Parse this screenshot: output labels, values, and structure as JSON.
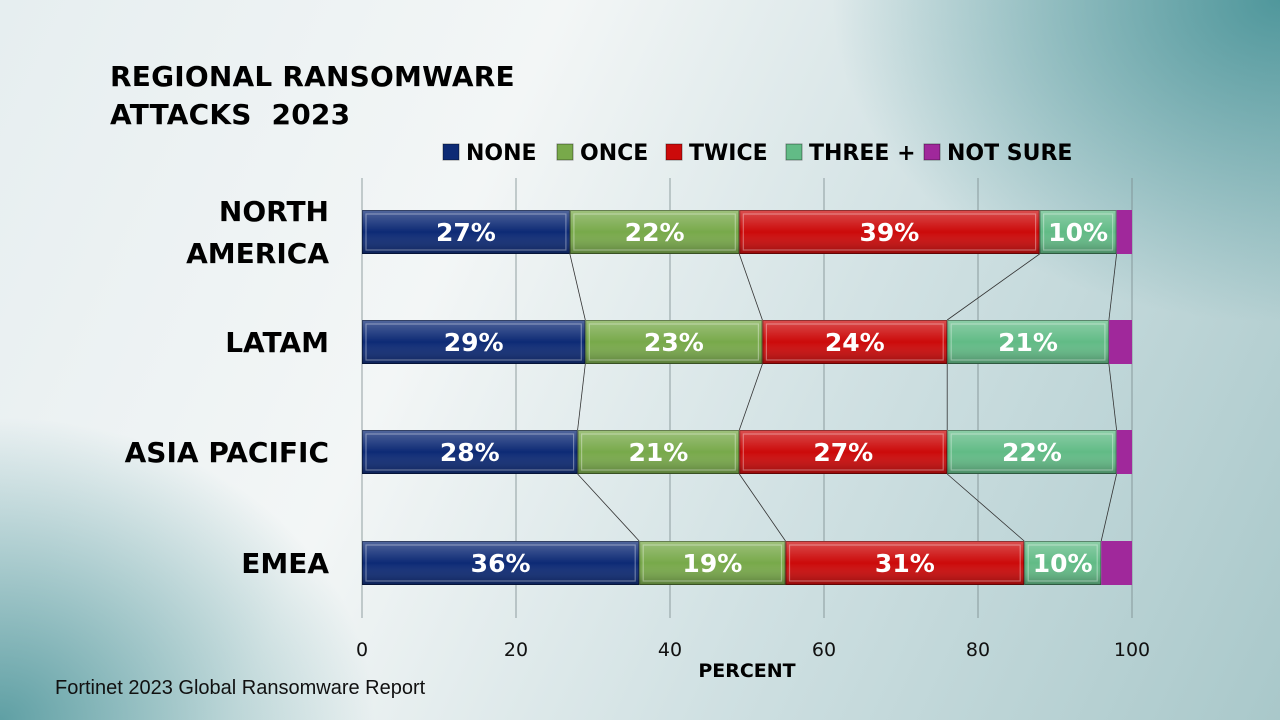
{
  "title": "REGIONAL RANSOMWARE\nATTACKS  2023",
  "source": "Fortinet 2023 Global Ransomware Report",
  "colors": {
    "none": "#0d2a75",
    "once": "#78a94a",
    "twice": "#cc0a0a",
    "three_plus": "#62bb86",
    "not_sure": "#a0289b"
  },
  "chart_data": {
    "type": "bar",
    "orientation": "horizontal",
    "stacked": true,
    "categories": [
      "NORTH AMERICA",
      "LATAM",
      "ASIA PACIFIC",
      "EMEA"
    ],
    "category_label_lines": [
      [
        "NORTH",
        "AMERICA"
      ],
      [
        "LATAM"
      ],
      [
        "ASIA PACIFIC"
      ],
      [
        "EMEA"
      ]
    ],
    "series": [
      {
        "name": "NONE",
        "key": "none",
        "values": [
          27,
          29,
          28,
          36
        ],
        "labels": [
          "27%",
          "29%",
          "28%",
          "36%"
        ]
      },
      {
        "name": "ONCE",
        "key": "once",
        "values": [
          22,
          23,
          21,
          19
        ],
        "labels": [
          "22%",
          "23%",
          "21%",
          "19%"
        ]
      },
      {
        "name": "TWICE",
        "key": "twice",
        "values": [
          39,
          24,
          27,
          31
        ],
        "labels": [
          "39%",
          "24%",
          "27%",
          "31%"
        ]
      },
      {
        "name": "THREE +",
        "key": "three_plus",
        "values": [
          10,
          21,
          22,
          10
        ],
        "labels": [
          "10%",
          "21%",
          "22%",
          "10%"
        ]
      },
      {
        "name": "NOT SURE",
        "key": "not_sure",
        "values": [
          2,
          3,
          2,
          4
        ],
        "labels": [
          "",
          "",
          "",
          ""
        ]
      }
    ],
    "xlim": [
      0,
      100
    ],
    "xticks": [
      0,
      20,
      40,
      60,
      80,
      100
    ],
    "xlabel": "PERCENT",
    "ylabel": "",
    "grid": "vertical",
    "legend": "top",
    "series_lines": true
  }
}
